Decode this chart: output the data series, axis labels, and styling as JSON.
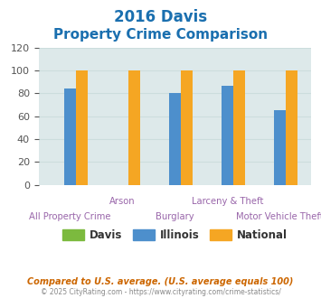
{
  "title_line1": "2016 Davis",
  "title_line2": "Property Crime Comparison",
  "title_color": "#1a6faf",
  "categories": [
    "All Property Crime",
    "Arson",
    "Burglary",
    "Larceny & Theft",
    "Motor Vehicle Theft"
  ],
  "davis_values": [
    0,
    0,
    0,
    0,
    0
  ],
  "illinois_values": [
    84,
    0,
    80,
    87,
    65
  ],
  "national_values": [
    100,
    100,
    100,
    100,
    100
  ],
  "davis_color": "#7cba3e",
  "illinois_color": "#4d8fcc",
  "national_color": "#f5a623",
  "ylim": [
    0,
    120
  ],
  "yticks": [
    0,
    20,
    40,
    60,
    80,
    100,
    120
  ],
  "grid_color": "#ccdddd",
  "bg_color": "#dde9ea",
  "plot_bg": "#dde9ea",
  "legend_labels": [
    "Davis",
    "Illinois",
    "National"
  ],
  "footnote1": "Compared to U.S. average. (U.S. average equals 100)",
  "footnote2": "© 2025 CityRating.com - https://www.cityrating.com/crime-statistics/",
  "footnote1_color": "#cc6600",
  "footnote2_color": "#888888",
  "xlabel_color": "#9966aa",
  "bar_width": 0.22
}
